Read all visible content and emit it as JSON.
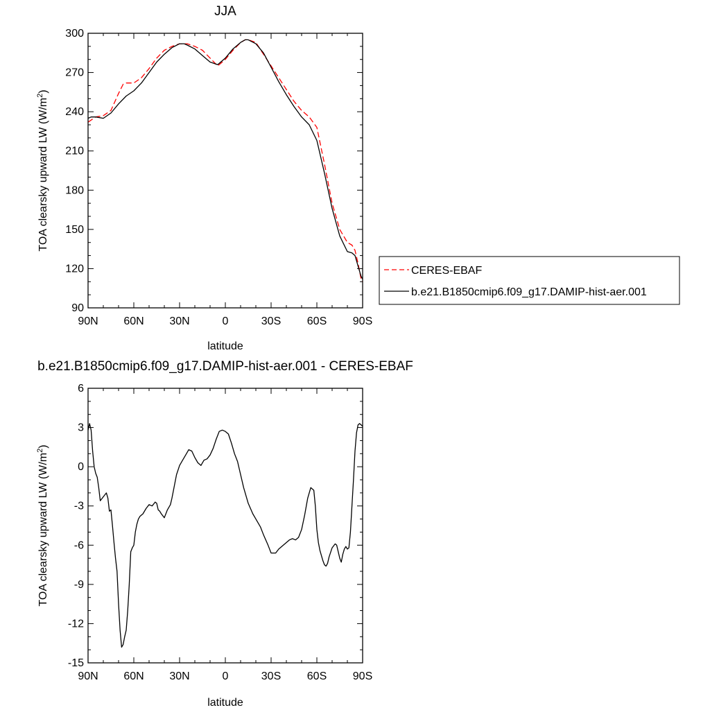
{
  "chart_data": [
    {
      "type": "line",
      "title": "JJA",
      "xlabel": "latitude",
      "ylabel": "TOA clearsky upward LW (W/m",
      "ylabel_sup": "2",
      "ylabel_tail": ")",
      "xlim": [
        90,
        -90
      ],
      "ylim": [
        90,
        300
      ],
      "xticks": [
        90,
        60,
        30,
        0,
        -30,
        -60,
        -90
      ],
      "xtick_labels": [
        "90N",
        "60N",
        "30N",
        "0",
        "30S",
        "60S",
        "90S"
      ],
      "yticks": [
        90,
        120,
        150,
        180,
        210,
        240,
        270,
        300
      ],
      "ytick_labels": [
        "90",
        "120",
        "150",
        "180",
        "210",
        "240",
        "270",
        "300"
      ],
      "legend_position": "right",
      "series": [
        {
          "name": "CERES-EBAF",
          "color": "#ff0000",
          "dash": true,
          "x": [
            90,
            85,
            80,
            75,
            70,
            67,
            65,
            62,
            60,
            55,
            50,
            45,
            40,
            35,
            30,
            27,
            25,
            20,
            15,
            10,
            5,
            0,
            -5,
            -10,
            -13,
            -15,
            -20,
            -25,
            -30,
            -35,
            -40,
            -45,
            -50,
            -55,
            -60,
            -65,
            -70,
            -75,
            -80,
            -83,
            -85,
            -87,
            -89,
            -90
          ],
          "y": [
            232,
            236,
            237,
            241,
            254,
            261,
            262,
            262,
            262,
            266,
            273,
            281,
            287,
            290,
            292,
            292,
            292,
            290,
            287,
            281,
            275,
            280,
            287,
            293,
            295,
            295,
            293,
            284,
            275,
            266,
            257,
            248,
            241,
            236,
            228,
            200,
            170,
            150,
            140,
            138,
            134,
            124,
            112,
            110
          ]
        },
        {
          "name": "b.e21.B1850cmip6.f09_g17.DAMIP-hist-aer.001",
          "color": "#000000",
          "dash": false,
          "x": [
            90,
            88,
            85,
            80,
            75,
            70,
            65,
            60,
            55,
            50,
            45,
            40,
            35,
            30,
            27,
            25,
            20,
            15,
            10,
            5,
            0,
            -5,
            -10,
            -13,
            -15,
            -20,
            -25,
            -30,
            -35,
            -40,
            -45,
            -50,
            -55,
            -60,
            -65,
            -70,
            -75,
            -80,
            -83,
            -85,
            -87,
            -89,
            -90
          ],
          "y": [
            235,
            236,
            236,
            235,
            239,
            246,
            252,
            256,
            262,
            270,
            278,
            284,
            289,
            292,
            292,
            291,
            288,
            283,
            278,
            276,
            281,
            288,
            293,
            295,
            295,
            292,
            285,
            274,
            263,
            253,
            244,
            236,
            230,
            218,
            193,
            166,
            145,
            133,
            132,
            130,
            122,
            114,
            112
          ]
        }
      ]
    },
    {
      "type": "line",
      "title": "b.e21.B1850cmip6.f09_g17.DAMIP-hist-aer.001 - CERES-EBAF",
      "xlabel": "latitude",
      "ylabel": "TOA clearsky upward LW (W/m",
      "ylabel_sup": "2",
      "ylabel_tail": ")",
      "xlim": [
        90,
        -90
      ],
      "ylim": [
        -15,
        6
      ],
      "xticks": [
        90,
        60,
        30,
        0,
        -30,
        -60,
        -90
      ],
      "xtick_labels": [
        "90N",
        "60N",
        "30N",
        "0",
        "30S",
        "60S",
        "90S"
      ],
      "yticks": [
        -15,
        -12,
        -9,
        -6,
        -3,
        0,
        3,
        6
      ],
      "ytick_labels": [
        "-15",
        "-12",
        "-9",
        "-6",
        "-3",
        "0",
        "3",
        "6"
      ],
      "series": [
        {
          "color": "#000000",
          "dash": false,
          "x": [
            90,
            89,
            88,
            87,
            86,
            85,
            84,
            83,
            82,
            80,
            78,
            77,
            76,
            75,
            74,
            73,
            72,
            71,
            70,
            69,
            68,
            67,
            66,
            65,
            64,
            63,
            62,
            61,
            60,
            59,
            58,
            57,
            56,
            55,
            54,
            52,
            50,
            48,
            46,
            45,
            44,
            43,
            42,
            40,
            38,
            36,
            35,
            34,
            33,
            32,
            30,
            28,
            26,
            24,
            22,
            20,
            18,
            16,
            14,
            12,
            10,
            8,
            6,
            4,
            2,
            0,
            -2,
            -4,
            -6,
            -8,
            -10,
            -12,
            -15,
            -18,
            -20,
            -23,
            -25,
            -28,
            -30,
            -33,
            -35,
            -38,
            -40,
            -42,
            -44,
            -46,
            -48,
            -50,
            -52,
            -54,
            -56,
            -58,
            -59,
            -60,
            -61,
            -62,
            -63,
            -64,
            -65,
            -66,
            -67,
            -68,
            -70,
            -72,
            -73,
            -74,
            -75,
            -76,
            -77,
            -78,
            -79,
            -80,
            -81,
            -82,
            -83,
            -84,
            -85,
            -86,
            -87,
            -88,
            -89,
            -90
          ],
          "y": [
            2.8,
            3.3,
            2.8,
            1.2,
            0.0,
            -0.5,
            -0.8,
            -1.6,
            -2.6,
            -2.3,
            -2.0,
            -2.4,
            -3.4,
            -3.3,
            -4.5,
            -5.8,
            -7.0,
            -8.0,
            -10.5,
            -12.5,
            -13.8,
            -13.6,
            -13.0,
            -12.5,
            -11.0,
            -9.0,
            -6.5,
            -6.2,
            -6.0,
            -5.0,
            -4.4,
            -4.0,
            -3.8,
            -3.7,
            -3.6,
            -3.2,
            -2.9,
            -3.0,
            -2.7,
            -2.8,
            -3.3,
            -3.4,
            -3.6,
            -3.9,
            -3.3,
            -2.9,
            -2.4,
            -1.8,
            -1.2,
            -0.6,
            0.1,
            0.5,
            0.9,
            1.3,
            1.2,
            0.7,
            0.3,
            0.1,
            0.5,
            0.6,
            0.9,
            1.4,
            2.1,
            2.7,
            2.8,
            2.7,
            2.5,
            1.8,
            1.0,
            0.4,
            -0.6,
            -1.6,
            -2.8,
            -3.6,
            -4.0,
            -4.6,
            -5.2,
            -6.0,
            -6.6,
            -6.6,
            -6.3,
            -6.0,
            -5.8,
            -5.6,
            -5.5,
            -5.6,
            -5.4,
            -4.8,
            -3.7,
            -2.4,
            -1.6,
            -1.8,
            -3.0,
            -4.8,
            -5.8,
            -6.4,
            -6.8,
            -7.2,
            -7.5,
            -7.6,
            -7.4,
            -6.9,
            -6.2,
            -5.9,
            -6.0,
            -6.5,
            -7.0,
            -7.3,
            -6.7,
            -6.3,
            -6.1,
            -6.3,
            -6.2,
            -5.0,
            -3.0,
            -1.0,
            1.2,
            2.6,
            3.2,
            3.3,
            3.2,
            3.1
          ]
        }
      ]
    }
  ]
}
